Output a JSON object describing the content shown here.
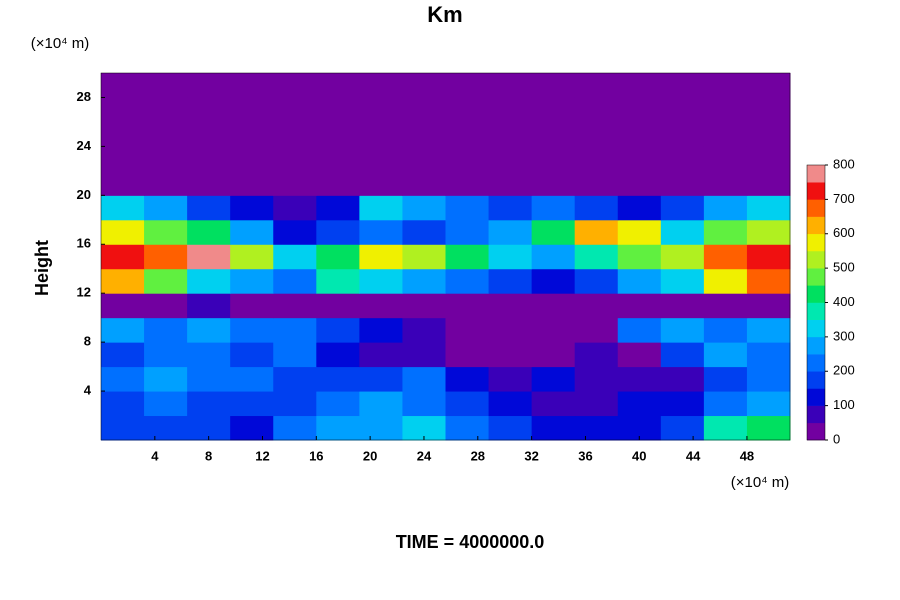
{
  "chart_data": {
    "type": "heatmap",
    "title": "Km",
    "ylabel": "Height",
    "x_unit": "(×10⁴ m)",
    "y_unit": "(×10⁴ m)",
    "footer": "TIME = 4000000.0",
    "xlim": [
      0,
      51.2
    ],
    "xticks": [
      4,
      8,
      12,
      16,
      20,
      24,
      28,
      32,
      36,
      40,
      44,
      48
    ],
    "ylim": [
      0,
      30
    ],
    "yticks": [
      4,
      8,
      12,
      16,
      20,
      24,
      28
    ],
    "clim": [
      0,
      800
    ],
    "cticks": [
      0,
      100,
      200,
      300,
      400,
      500,
      600,
      700,
      800
    ],
    "colors": [
      "#7200a0",
      "#3a00b8",
      "#0008d8",
      "#0040f0",
      "#0070ff",
      "#00a0ff",
      "#00d0f0",
      "#00e8b0",
      "#00e060",
      "#60f040",
      "#b0f020",
      "#f0f000",
      "#ffb000",
      "#ff6000",
      "#f01010",
      "#f08a8a"
    ],
    "z": [
      [
        150,
        180,
        160,
        120,
        200,
        250,
        280,
        300,
        220,
        150,
        100,
        100,
        120,
        150,
        350,
        420
      ],
      [
        180,
        200,
        180,
        150,
        160,
        220,
        250,
        200,
        150,
        100,
        80,
        80,
        100,
        120,
        200,
        250
      ],
      [
        220,
        250,
        200,
        220,
        180,
        150,
        180,
        200,
        120,
        80,
        100,
        80,
        60,
        80,
        180,
        220
      ],
      [
        180,
        200,
        220,
        180,
        200,
        100,
        60,
        50,
        40,
        30,
        40,
        50,
        40,
        150,
        250,
        200
      ],
      [
        250,
        230,
        250,
        220,
        200,
        180,
        120,
        80,
        40,
        20,
        20,
        30,
        200,
        250,
        230,
        250
      ],
      [
        20,
        20,
        50,
        30,
        20,
        10,
        20,
        30,
        40,
        20,
        10,
        30,
        20,
        20,
        30,
        40
      ],
      [
        600,
        450,
        300,
        250,
        200,
        350,
        300,
        250,
        200,
        150,
        100,
        150,
        250,
        300,
        550,
        650
      ],
      [
        700,
        650,
        750,
        500,
        300,
        400,
        550,
        500,
        400,
        300,
        250,
        350,
        450,
        500,
        650,
        700
      ],
      [
        550,
        450,
        400,
        250,
        100,
        150,
        200,
        150,
        200,
        250,
        400,
        600,
        550,
        300,
        450,
        500
      ],
      [
        300,
        250,
        150,
        100,
        50,
        100,
        300,
        250,
        200,
        150,
        200,
        150,
        100,
        150,
        250,
        300
      ],
      [
        0,
        0,
        0,
        0,
        0,
        0,
        0,
        0,
        0,
        0,
        0,
        0,
        0,
        0,
        0,
        0
      ],
      [
        0,
        0,
        0,
        0,
        0,
        0,
        0,
        0,
        0,
        0,
        0,
        0,
        0,
        0,
        0,
        0
      ],
      [
        0,
        0,
        0,
        0,
        0,
        0,
        0,
        0,
        0,
        0,
        0,
        0,
        0,
        0,
        0,
        0
      ],
      [
        0,
        0,
        0,
        0,
        0,
        0,
        0,
        0,
        0,
        0,
        0,
        0,
        0,
        0,
        0,
        0
      ],
      [
        0,
        0,
        0,
        0,
        0,
        0,
        0,
        0,
        0,
        0,
        0,
        0,
        0,
        0,
        0,
        0
      ]
    ]
  }
}
